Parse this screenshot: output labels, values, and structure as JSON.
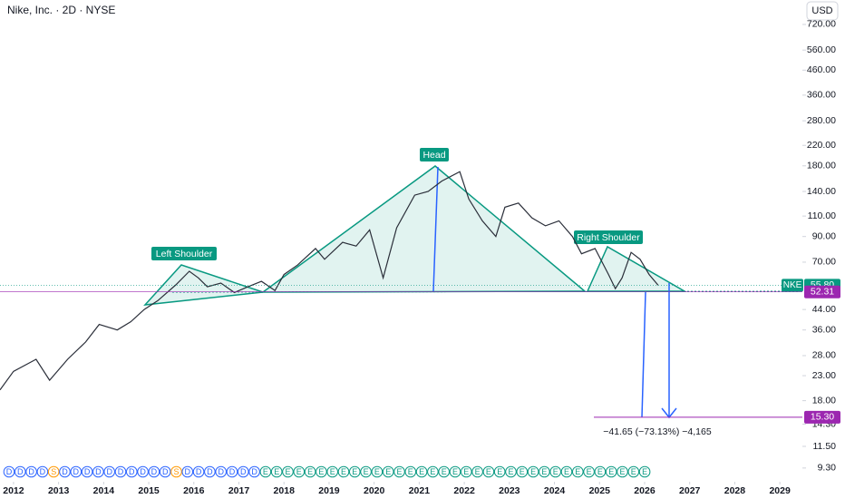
{
  "chart_data": {
    "type": "line",
    "title": "Nike, Inc. · 2D · NYSE",
    "currency": "USD",
    "log_scale": true,
    "x": [
      2011.7,
      2012.0,
      2012.5,
      2012.8,
      2013.2,
      2013.6,
      2013.9,
      2014.3,
      2014.6,
      2014.9,
      2015.2,
      2015.6,
      2015.9,
      2016.1,
      2016.3,
      2016.6,
      2016.9,
      2017.2,
      2017.5,
      2017.8,
      2018.0,
      2018.3,
      2018.7,
      2018.9,
      2019.3,
      2019.6,
      2019.9,
      2020.2,
      2020.5,
      2020.9,
      2021.2,
      2021.5,
      2021.9,
      2022.1,
      2022.4,
      2022.7,
      2022.9,
      2023.2,
      2023.5,
      2023.8,
      2024.1,
      2024.4,
      2024.6,
      2024.9,
      2025.2,
      2025.35,
      2025.5,
      2025.7,
      2025.9,
      2026.1,
      2026.3
    ],
    "series": [
      {
        "name": "NKE",
        "color": "#2a2e39",
        "values": [
          20,
          24,
          27,
          22,
          27,
          32,
          38,
          36,
          39,
          44,
          48,
          56,
          64,
          60,
          55,
          57,
          52,
          55,
          58,
          53,
          62,
          68,
          80,
          72,
          85,
          82,
          96,
          60,
          98,
          135,
          140,
          155,
          170,
          130,
          105,
          90,
          120,
          125,
          108,
          100,
          105,
          90,
          76,
          80,
          62,
          54,
          60,
          77,
          72,
          62,
          55.8
        ]
      }
    ],
    "xlim": [
      2011.7,
      2029.5
    ],
    "xticks": [
      2012,
      2013,
      2014,
      2015,
      2016,
      2017,
      2018,
      2019,
      2020,
      2021,
      2022,
      2023,
      2024,
      2025,
      2026,
      2027,
      2028,
      2029
    ],
    "ylim": [
      8.2,
      915
    ],
    "yticks": [
      {
        "value": 9.3,
        "label": "9.30"
      },
      {
        "value": 11.5,
        "label": "11.50"
      },
      {
        "value": 14.3,
        "label": "14.30"
      },
      {
        "value": 18,
        "label": "18.00"
      },
      {
        "value": 23,
        "label": "23.00"
      },
      {
        "value": 28,
        "label": "28.00"
      },
      {
        "value": 36,
        "label": "36.00"
      },
      {
        "value": 44,
        "label": "44.00"
      },
      {
        "value": 70,
        "label": "70.00"
      },
      {
        "value": 90,
        "label": "90.00"
      },
      {
        "value": 110,
        "label": "110.00"
      },
      {
        "value": 140,
        "label": "140.00"
      },
      {
        "value": 180,
        "label": "180.00"
      },
      {
        "value": 220,
        "label": "220.00"
      },
      {
        "value": 280,
        "label": "280.00"
      },
      {
        "value": 360,
        "label": "360.00"
      },
      {
        "value": 460,
        "label": "460.00"
      },
      {
        "value": 560,
        "label": "560.00"
      },
      {
        "value": 720,
        "label": "720.00"
      }
    ],
    "price_markers": [
      {
        "value": 55.8,
        "label": "55.80",
        "color": "#089981"
      },
      {
        "value": 52.31,
        "label": "52.31",
        "color": "#9c27b0"
      },
      {
        "value": 15.3,
        "label": "15.30",
        "color": "#9c27b0"
      }
    ],
    "annotations": [
      "Left Shoulder",
      "Head",
      "Right Shoulder"
    ],
    "measurement": "−41.65 (−73.13%) −4,165",
    "events": [
      "D",
      "D",
      "D",
      "D",
      "S",
      "D",
      "D",
      "D",
      "D",
      "D",
      "D",
      "D",
      "D",
      "D",
      "D",
      "S",
      "D",
      "D",
      "D",
      "D",
      "D",
      "D",
      "D",
      "E",
      "E",
      "E",
      "E",
      "E",
      "E",
      "E",
      "E",
      "E",
      "E",
      "E",
      "E",
      "E",
      "E",
      "E",
      "E",
      "E",
      "E",
      "E",
      "E",
      "E",
      "E",
      "E",
      "E",
      "E",
      "E",
      "E",
      "E",
      "E",
      "E",
      "E",
      "E",
      "E",
      "E",
      "E"
    ]
  }
}
